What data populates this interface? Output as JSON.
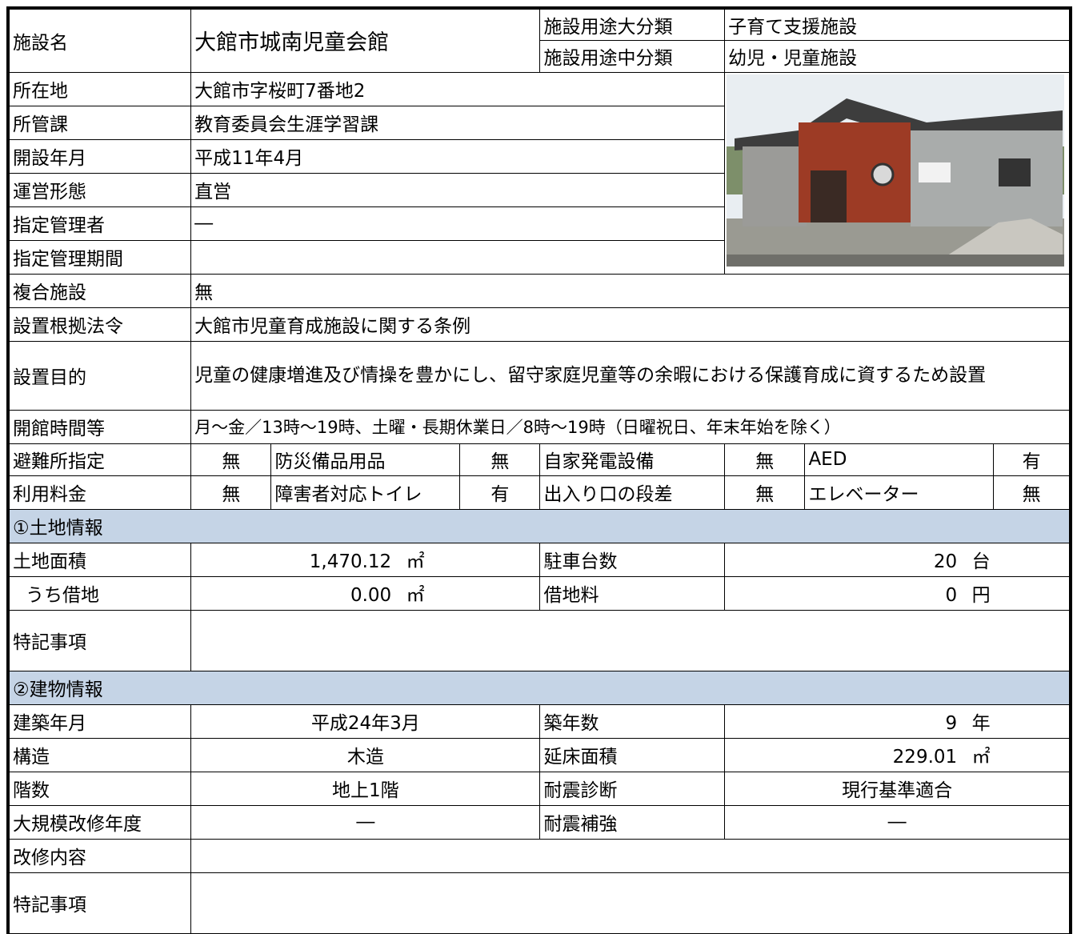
{
  "table": {
    "rows": [
      [
        "施設名",
        "大館市城南児童会館",
        "施設用途大分類",
        "子育て支援施設"
      ],
      [
        "施設用途中分類",
        "幼児・児童施設"
      ],
      [
        "所在地",
        "大館市字桜町7番地2"
      ],
      [
        "所管課",
        "教育委員会生涯学習課"
      ],
      [
        "開設年月",
        "平成11年4月"
      ],
      [
        "運営形態",
        "直営"
      ],
      [
        "指定管理者",
        "―"
      ],
      [
        "指定管理期間"
      ],
      [
        "複合施設",
        "無"
      ],
      [
        "設置根拠法令",
        "大館市児童育成施設に関する条例"
      ],
      [
        "設置目的",
        "児童の健康増進及び情操を豊かにし、留守家庭児童等の余暇における保護育成に資するため設置"
      ],
      [
        "開館時間等",
        "月～金／13時～19時、土曜・長期休業日／8時～19時（日曜祝日、年末年始を除く）"
      ],
      [
        "避難所指定",
        "無",
        "防災備品用品",
        "無",
        "自家発電設備",
        "無",
        "AED",
        "有"
      ],
      [
        "利用料金",
        "無",
        "障害者対応トイレ",
        "有",
        "出入り口の段差",
        "無",
        "エレベーター",
        "無"
      ],
      [
        "①土地情報"
      ],
      [
        "土地面積",
        "1,470.12",
        "㎡",
        "駐車台数",
        20,
        "台"
      ],
      [
        "うち借地",
        "0.00",
        "㎡",
        "借地料",
        0,
        "円"
      ],
      [
        "特記事項"
      ],
      [
        "②建物情報"
      ],
      [
        "建築年月",
        "平成24年3月",
        "築年数",
        9,
        "年"
      ],
      [
        "構造",
        "木造",
        "延床面積",
        "229.01",
        "㎡"
      ],
      [
        "階数",
        "地上1階",
        "耐震診断",
        "現行基準適合"
      ],
      [
        "大規模改修年度",
        "―",
        "耐震補強",
        "―"
      ],
      [
        "改修内容"
      ],
      [
        "特記事項"
      ]
    ]
  }
}
